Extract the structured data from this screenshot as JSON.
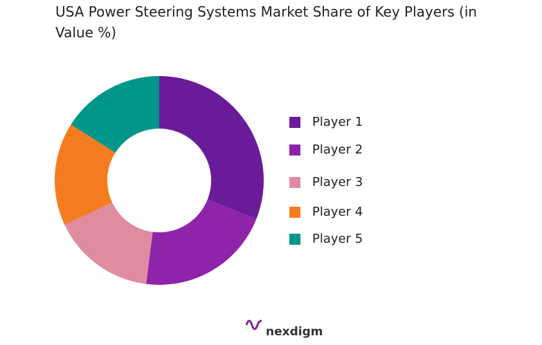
{
  "chart_data": {
    "type": "donut",
    "title": "USA Power Steering Systems Market Share of Key Players (in Value %)",
    "categories": [
      "Player 1",
      "Player 2",
      "Player 3",
      "Player 4",
      "Player 5"
    ],
    "values": [
      31,
      21,
      16,
      16,
      16
    ],
    "colors": [
      "#6a1b9a",
      "#8e24aa",
      "#e08ca0",
      "#f47c20",
      "#00968a"
    ],
    "legend": "right"
  },
  "logo": "nexdigm"
}
